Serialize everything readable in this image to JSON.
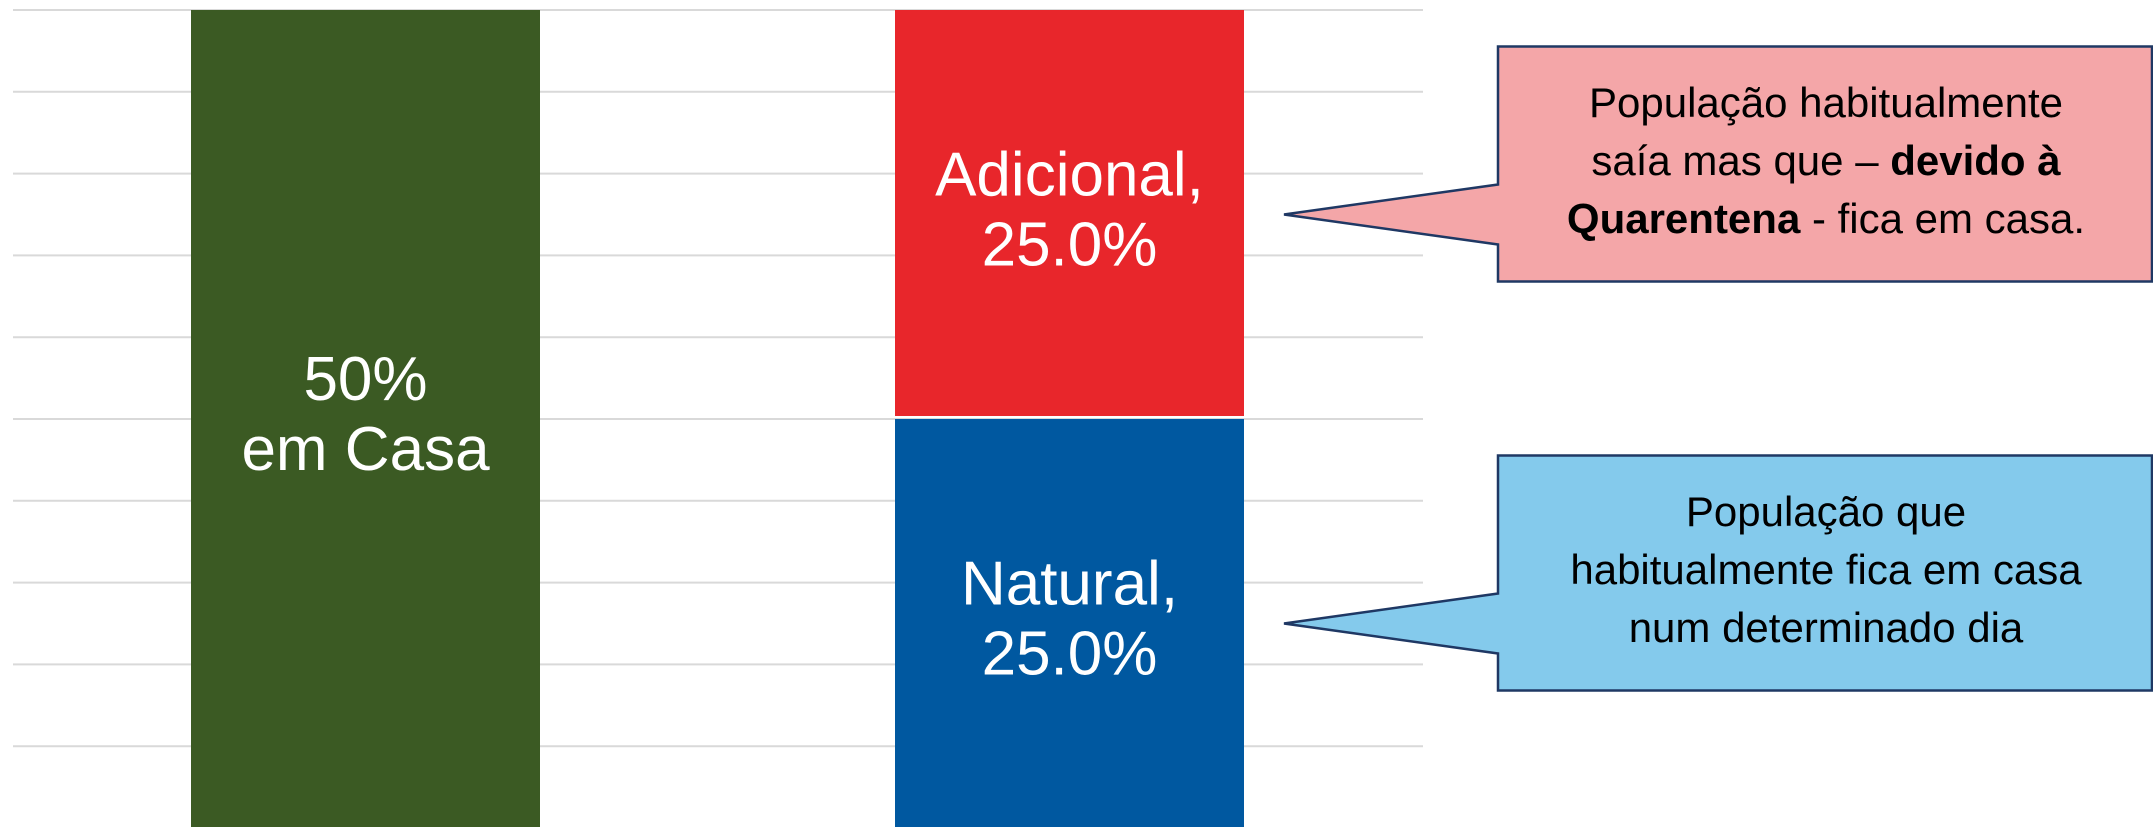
{
  "chart_data": {
    "type": "bar",
    "stacked": true,
    "categories": [
      null,
      null
    ],
    "ylim": [
      0,
      50
    ],
    "yticks": [
      5,
      10,
      15,
      20,
      25,
      30,
      35,
      40,
      45,
      50
    ],
    "grid": true,
    "series": [
      {
        "color": "#3b5a23",
        "values": [
          50,
          null
        ],
        "value_labels": [
          [
            "50%",
            "em Casa"
          ],
          null
        ]
      },
      {
        "color": "#0058a0",
        "values": [
          null,
          25
        ],
        "value_labels": [
          null,
          [
            "Natural,",
            "25.0%"
          ]
        ]
      },
      {
        "color": "#e8262b",
        "values": [
          null,
          25
        ],
        "value_labels": [
          null,
          [
            "Adicional,",
            "25.0%"
          ]
        ]
      }
    ],
    "annotations": [
      {
        "color": "#f4a6a8",
        "series": 2,
        "lines": [
          [
            {
              "text": "População habitualmente",
              "bold": false
            }
          ],
          [
            {
              "text": "saía mas que – ",
              "bold": false
            },
            {
              "text": "devido à",
              "bold": true
            }
          ],
          [
            {
              "text": "Quarentena",
              "bold": true
            },
            {
              "text": " - fica em casa.",
              "bold": false
            }
          ]
        ]
      },
      {
        "color": "#84caec",
        "series": 1,
        "lines": [
          [
            {
              "text": "População que",
              "bold": false
            }
          ],
          [
            {
              "text": "habitualmente fica em casa",
              "bold": false
            }
          ],
          [
            {
              "text": "num determinado dia",
              "bold": false
            }
          ]
        ]
      }
    ]
  }
}
